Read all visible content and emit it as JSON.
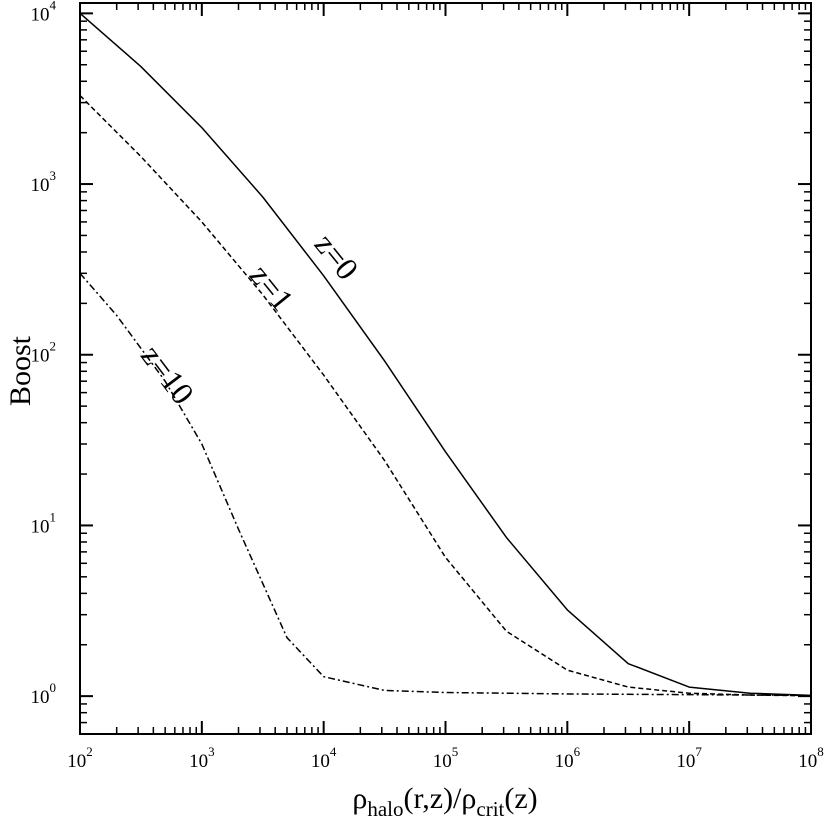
{
  "chart_data": {
    "type": "line",
    "xscale": "log",
    "yscale": "log",
    "xlim": [
      100,
      100000000
    ],
    "ylim": [
      0.6,
      11500
    ],
    "grid": false,
    "legend": "none",
    "ylabel": "Boost",
    "xlabel": {
      "rho1": "ρ",
      "sub1": "halo",
      "mid": "(r,z)/",
      "rho2": "ρ",
      "sub2": "crit",
      "end": "(z)"
    },
    "x_ticks": [
      {
        "base": "10",
        "exp": "2",
        "value": 100
      },
      {
        "base": "10",
        "exp": "3",
        "value": 1000
      },
      {
        "base": "10",
        "exp": "4",
        "value": 10000
      },
      {
        "base": "10",
        "exp": "5",
        "value": 100000
      },
      {
        "base": "10",
        "exp": "6",
        "value": 1000000
      },
      {
        "base": "10",
        "exp": "7",
        "value": 10000000
      },
      {
        "base": "10",
        "exp": "8",
        "value": 100000000
      }
    ],
    "y_ticks": [
      {
        "base": "10",
        "exp": "0",
        "value": 1
      },
      {
        "base": "10",
        "exp": "1",
        "value": 10
      },
      {
        "base": "10",
        "exp": "2",
        "value": 100
      },
      {
        "base": "10",
        "exp": "3",
        "value": 1000
      },
      {
        "base": "10",
        "exp": "4",
        "value": 10000
      }
    ],
    "series": [
      {
        "name": "z=0",
        "style": "solid",
        "color": "#000000",
        "x": [
          100,
          316,
          1000,
          3162,
          10000,
          31623,
          100000,
          316228,
          1000000,
          3162278,
          10000000,
          31622777,
          100000000
        ],
        "y": [
          10000,
          4880,
          2140,
          840,
          290,
          92,
          27,
          8.5,
          3.2,
          1.55,
          1.13,
          1.04,
          1.01
        ]
      },
      {
        "name": "z=1",
        "style": "dashed",
        "color": "#000000",
        "x": [
          100,
          316,
          1000,
          3162,
          10000,
          31623,
          100000,
          316228,
          1000000,
          3162278,
          10000000,
          31622777,
          100000000
        ],
        "y": [
          3300,
          1450,
          600,
          225,
          76,
          24,
          6.5,
          2.4,
          1.42,
          1.13,
          1.04,
          1.015,
          1.005
        ]
      },
      {
        "name": "z=10",
        "style": "dashdot",
        "color": "#000000",
        "x": [
          100,
          200,
          500,
          1000,
          2000,
          5000,
          10000,
          31623,
          100000,
          316228,
          1000000,
          10000000,
          100000000
        ],
        "y": [
          300,
          170,
          70,
          30,
          9.5,
          2.2,
          1.3,
          1.08,
          1.05,
          1.04,
          1.03,
          1.02,
          1.01
        ]
      }
    ],
    "annotations": [
      {
        "text": "z=0",
        "series": "z=0"
      },
      {
        "text": "z=1",
        "series": "z=1"
      },
      {
        "text": "z=10",
        "series": "z=10"
      }
    ]
  }
}
